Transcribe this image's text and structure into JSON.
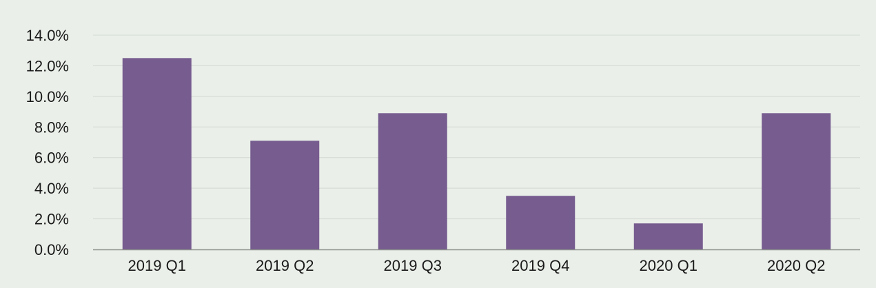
{
  "chart_data": {
    "type": "bar",
    "title": "",
    "xlabel": "",
    "ylabel": "",
    "categories": [
      "2019 Q1",
      "2019 Q2",
      "2019 Q3",
      "2019 Q4",
      "2020 Q1",
      "2020 Q2"
    ],
    "values": [
      12.5,
      7.1,
      8.9,
      3.5,
      1.7,
      8.9
    ],
    "value_unit": "%",
    "ylim": [
      0,
      14
    ],
    "yticks": [
      0,
      2,
      4,
      6,
      8,
      10,
      12,
      14
    ],
    "ytick_labels": [
      "0.0%",
      "2.0%",
      "4.0%",
      "6.0%",
      "8.0%",
      "10.0%",
      "12.0%",
      "14.0%"
    ],
    "grid": true,
    "legend": "none",
    "colors": {
      "bar": "#765c8f",
      "grid": "#d3d8d2",
      "axis": "#8f928e",
      "background": "#eaefe9",
      "text": "#1a1a1a"
    }
  }
}
